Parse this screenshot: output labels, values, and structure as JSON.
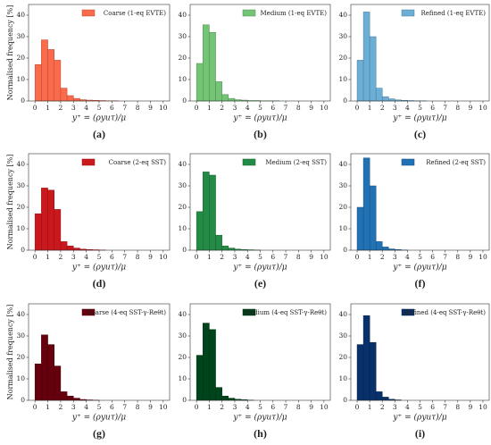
{
  "chart_data": [
    {
      "type": "histogram",
      "caption": "(a)",
      "ylabel": "Normalised frequency [%]",
      "xlabel": "y⁺ = (ρyuτ)/μ",
      "bins": [
        0,
        0.5,
        1,
        1.5,
        2,
        2.5,
        3,
        3.5,
        4,
        4.5,
        5,
        5.5,
        6,
        6.5,
        7,
        7.5,
        8,
        8.5,
        9,
        9.5,
        10
      ],
      "series": [
        {
          "name": "Coarse (1-eq EVTE)",
          "color": "#fb6a4a",
          "values": [
            17,
            28.5,
            24,
            19,
            6,
            2.5,
            1.2,
            0.6,
            0.4,
            0.3,
            0.2,
            0.1,
            0.1,
            0,
            0,
            0,
            0,
            0,
            0,
            0
          ]
        }
      ],
      "xlim": [
        -0.5,
        10.5
      ],
      "ylim": [
        0,
        45
      ],
      "xticks": [
        0,
        1,
        2,
        3,
        4,
        5,
        6,
        7,
        8,
        9,
        10
      ],
      "yticks": [
        0,
        10,
        20,
        30,
        40
      ]
    },
    {
      "type": "histogram",
      "caption": "(b)",
      "xlabel": "y⁺ = (ρyuτ)/μ",
      "bins": [
        0,
        0.5,
        1,
        1.5,
        2,
        2.5,
        3,
        3.5,
        4,
        4.5,
        5,
        5.5,
        6,
        6.5,
        7,
        7.5,
        8,
        8.5,
        9,
        9.5,
        10
      ],
      "series": [
        {
          "name": "Medium (1-eq EVTE)",
          "color": "#74c476",
          "values": [
            17.5,
            35.5,
            32,
            9,
            3,
            1.2,
            0.6,
            0.4,
            0.2,
            0.2,
            0.1,
            0.1,
            0.1,
            0,
            0,
            0,
            0,
            0,
            0,
            0
          ]
        }
      ],
      "xlim": [
        -0.5,
        10.5
      ],
      "ylim": [
        0,
        45
      ],
      "xticks": [
        0,
        1,
        2,
        3,
        4,
        5,
        6,
        7,
        8,
        9,
        10
      ],
      "yticks": [
        0,
        10,
        20,
        30,
        40
      ]
    },
    {
      "type": "histogram",
      "caption": "(c)",
      "xlabel": "y⁺ = (ρyuτ)/μ",
      "bins": [
        0,
        0.5,
        1,
        1.5,
        2,
        2.5,
        3,
        3.5,
        4,
        4.5,
        5,
        5.5,
        6,
        6.5,
        7,
        7.5,
        8,
        8.5,
        9,
        9.5,
        10
      ],
      "series": [
        {
          "name": "Refined (1-eq EVTE)",
          "color": "#6baed6",
          "values": [
            19,
            41.5,
            30,
            6,
            2,
            1,
            0.5,
            0.3,
            0.2,
            0.1,
            0.1,
            0,
            0,
            0,
            0,
            0,
            0,
            0,
            0,
            0
          ]
        }
      ],
      "xlim": [
        -0.5,
        10.5
      ],
      "ylim": [
        0,
        45
      ],
      "xticks": [
        0,
        1,
        2,
        3,
        4,
        5,
        6,
        7,
        8,
        9,
        10
      ],
      "yticks": [
        0,
        10,
        20,
        30,
        40
      ]
    },
    {
      "type": "histogram",
      "caption": "(d)",
      "ylabel": "Normalised frequency [%]",
      "xlabel": "y⁺ = (ρyuτ)/μ",
      "bins": [
        0,
        0.5,
        1,
        1.5,
        2,
        2.5,
        3,
        3.5,
        4,
        4.5,
        5,
        5.5,
        6,
        6.5,
        7,
        7.5,
        8,
        8.5,
        9,
        9.5,
        10
      ],
      "series": [
        {
          "name": "Coarse (2-eq SST)",
          "color": "#cb181d",
          "values": [
            17,
            29,
            28,
            19,
            4,
            2,
            1,
            0.5,
            0.3,
            0.2,
            0.1,
            0,
            0,
            0,
            0,
            0,
            0,
            0,
            0,
            0
          ]
        }
      ],
      "xlim": [
        -0.5,
        10.5
      ],
      "ylim": [
        0,
        45
      ],
      "xticks": [
        0,
        1,
        2,
        3,
        4,
        5,
        6,
        7,
        8,
        9,
        10
      ],
      "yticks": [
        0,
        10,
        20,
        30,
        40
      ]
    },
    {
      "type": "histogram",
      "caption": "(e)",
      "xlabel": "y⁺ = (ρyuτ)/μ",
      "bins": [
        0,
        0.5,
        1,
        1.5,
        2,
        2.5,
        3,
        3.5,
        4,
        4.5,
        5,
        5.5,
        6,
        6.5,
        7,
        7.5,
        8,
        8.5,
        9,
        9.5,
        10
      ],
      "series": [
        {
          "name": "Medium (2-eq SST)",
          "color": "#238b45",
          "values": [
            18,
            36.5,
            35,
            7,
            2,
            1,
            0.5,
            0.3,
            0.2,
            0.1,
            0,
            0,
            0,
            0,
            0,
            0,
            0,
            0,
            0,
            0
          ]
        }
      ],
      "xlim": [
        -0.5,
        10.5
      ],
      "ylim": [
        0,
        45
      ],
      "xticks": [
        0,
        1,
        2,
        3,
        4,
        5,
        6,
        7,
        8,
        9,
        10
      ],
      "yticks": [
        0,
        10,
        20,
        30,
        40
      ]
    },
    {
      "type": "histogram",
      "caption": "(f)",
      "xlabel": "y⁺ = (ρyuτ)/μ",
      "bins": [
        0,
        0.5,
        1,
        1.5,
        2,
        2.5,
        3,
        3.5,
        4,
        4.5,
        5,
        5.5,
        6,
        6.5,
        7,
        7.5,
        8,
        8.5,
        9,
        9.5,
        10
      ],
      "series": [
        {
          "name": "Refined (2-eq SST)",
          "color": "#2171b5",
          "values": [
            20,
            43,
            30,
            4,
            1.5,
            0.6,
            0.3,
            0.1,
            0,
            0,
            0,
            0,
            0,
            0,
            0,
            0,
            0,
            0,
            0,
            0
          ]
        }
      ],
      "xlim": [
        -0.5,
        10.5
      ],
      "ylim": [
        0,
        45
      ],
      "xticks": [
        0,
        1,
        2,
        3,
        4,
        5,
        6,
        7,
        8,
        9,
        10
      ],
      "yticks": [
        0,
        10,
        20,
        30,
        40
      ]
    },
    {
      "type": "histogram",
      "caption": "(g)",
      "ylabel": "Normalised frequency [%]",
      "xlabel": "y⁺ = (ρyuτ)/μ",
      "bins": [
        0,
        0.5,
        1,
        1.5,
        2,
        2.5,
        3,
        3.5,
        4,
        4.5,
        5,
        5.5,
        6,
        6.5,
        7,
        7.5,
        8,
        8.5,
        9,
        9.5,
        10
      ],
      "series": [
        {
          "name": "Coarse (4-eq SST-γ-Reθt)",
          "color": "#67000d",
          "values": [
            17,
            30.5,
            26,
            16,
            4,
            2,
            1,
            0.4,
            0.2,
            0.1,
            0,
            0,
            0,
            0,
            0,
            0,
            0,
            0,
            0,
            0
          ]
        }
      ],
      "xlim": [
        -0.5,
        10.5
      ],
      "ylim": [
        0,
        45
      ],
      "xticks": [
        0,
        1,
        2,
        3,
        4,
        5,
        6,
        7,
        8,
        9,
        10
      ],
      "yticks": [
        0,
        10,
        20,
        30,
        40
      ]
    },
    {
      "type": "histogram",
      "caption": "(h)",
      "xlabel": "y⁺ = (ρyuτ)/μ",
      "bins": [
        0,
        0.5,
        1,
        1.5,
        2,
        2.5,
        3,
        3.5,
        4,
        4.5,
        5,
        5.5,
        6,
        6.5,
        7,
        7.5,
        8,
        8.5,
        9,
        9.5,
        10
      ],
      "series": [
        {
          "name": "Medium (4-eq SST-γ-Reθt)",
          "color": "#00441b",
          "values": [
            21,
            36,
            33,
            6,
            2,
            1,
            0.5,
            0.3,
            0.1,
            0,
            0,
            0,
            0,
            0,
            0,
            0,
            0,
            0,
            0,
            0
          ]
        }
      ],
      "xlim": [
        -0.5,
        10.5
      ],
      "ylim": [
        0,
        45
      ],
      "xticks": [
        0,
        1,
        2,
        3,
        4,
        5,
        6,
        7,
        8,
        9,
        10
      ],
      "yticks": [
        0,
        10,
        20,
        30,
        40
      ]
    },
    {
      "type": "histogram",
      "caption": "(i)",
      "xlabel": "y⁺ = (ρyuτ)/μ",
      "bins": [
        0,
        0.5,
        1,
        1.5,
        2,
        2.5,
        3,
        3.5,
        4,
        4.5,
        5,
        5.5,
        6,
        6.5,
        7,
        7.5,
        8,
        8.5,
        9,
        9.5,
        10
      ],
      "series": [
        {
          "name": "Refined (4-eq SST-γ-Reθt)",
          "color": "#08306b",
          "values": [
            26,
            39.5,
            27,
            4,
            1.5,
            0.5,
            0.2,
            0,
            0,
            0,
            0,
            0,
            0,
            0,
            0,
            0,
            0,
            0,
            0,
            0
          ]
        }
      ],
      "xlim": [
        -0.5,
        10.5
      ],
      "ylim": [
        0,
        45
      ],
      "xticks": [
        0,
        1,
        2,
        3,
        4,
        5,
        6,
        7,
        8,
        9,
        10
      ],
      "yticks": [
        0,
        10,
        20,
        30,
        40
      ]
    }
  ]
}
